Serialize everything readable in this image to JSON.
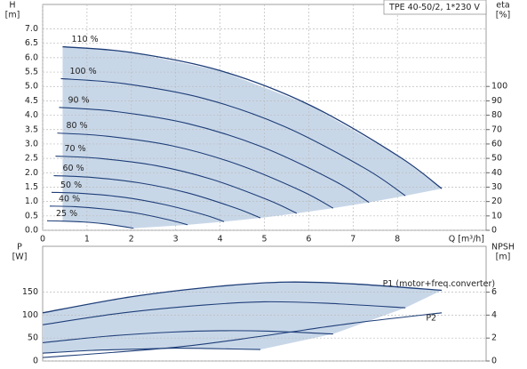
{
  "chart_data": [
    {
      "type": "line",
      "title": "TPE 40-50/2, 1*230 V",
      "ylabel": [
        "H",
        "[m]"
      ],
      "y2label": [
        "eta",
        "[%]"
      ],
      "xlabel": "Q [m³/h]",
      "xlim": [
        0,
        10
      ],
      "xticks": [
        0,
        1,
        2,
        3,
        4,
        5,
        6,
        7,
        8
      ],
      "ylim": [
        0,
        7.85
      ],
      "yticks": [
        {
          "value": 0,
          "label": "0.0"
        },
        {
          "value": 0.5,
          "label": "0.5"
        },
        {
          "value": 1,
          "label": "1.0"
        },
        {
          "value": 1.5,
          "label": "1.5"
        },
        {
          "value": 2,
          "label": "2.0"
        },
        {
          "value": 2.5,
          "label": "2.5"
        },
        {
          "value": 3,
          "label": "3.0"
        },
        {
          "value": 3.5,
          "label": "3.5"
        },
        {
          "value": 4,
          "label": "4.0"
        },
        {
          "value": 4.5,
          "label": "4.5"
        },
        {
          "value": 5,
          "label": "5.0"
        },
        {
          "value": 5.5,
          "label": "5.5"
        },
        {
          "value": 6,
          "label": "6.0"
        },
        {
          "value": 6.5,
          "label": "6.5"
        },
        {
          "value": 7,
          "label": "7.0"
        }
      ],
      "y2lim": [
        0,
        157
      ],
      "y2ticks": [
        0,
        10,
        20,
        30,
        40,
        50,
        60,
        70,
        80,
        90,
        100
      ],
      "grid": true,
      "fill_color": "#c8d7e8",
      "series": [
        {
          "name": "110 %",
          "color": "#1e3e78",
          "x": [
            0.45,
            2,
            4,
            6,
            8,
            9.0
          ],
          "values": [
            6.38,
            6.18,
            5.55,
            4.37,
            2.6,
            1.45
          ]
        },
        {
          "name": "100 %",
          "color": "#1e3e78",
          "x": [
            0.41,
            1.82,
            3.64,
            5.45,
            7.27,
            8.18
          ],
          "values": [
            5.27,
            5.1,
            4.58,
            3.61,
            2.15,
            1.2
          ]
        },
        {
          "name": "90 %",
          "color": "#1e3e78",
          "x": [
            0.37,
            1.64,
            3.27,
            4.91,
            6.55,
            7.36
          ],
          "values": [
            4.27,
            4.13,
            3.71,
            2.92,
            1.74,
            0.97
          ]
        },
        {
          "name": "80 %",
          "color": "#1e3e78",
          "x": [
            0.33,
            1.45,
            2.91,
            4.36,
            5.82,
            6.55
          ],
          "values": [
            3.38,
            3.27,
            2.94,
            2.31,
            1.38,
            0.77
          ]
        },
        {
          "name": "70 %",
          "color": "#1e3e78",
          "x": [
            0.29,
            1.27,
            2.55,
            3.82,
            5.09,
            5.73
          ],
          "values": [
            2.58,
            2.5,
            2.25,
            1.77,
            1.05,
            0.59
          ]
        },
        {
          "name": "60 %",
          "color": "#1e3e78",
          "x": [
            0.25,
            1.09,
            2.18,
            3.27,
            4.36,
            4.91
          ],
          "values": [
            1.9,
            1.84,
            1.65,
            1.3,
            0.77,
            0.43
          ]
        },
        {
          "name": "50 %",
          "color": "#1e3e78",
          "x": [
            0.2,
            0.91,
            1.82,
            2.73,
            3.64,
            4.09
          ],
          "values": [
            1.32,
            1.28,
            1.15,
            0.9,
            0.54,
            0.3
          ]
        },
        {
          "name": "40 %",
          "color": "#1e3e78",
          "x": [
            0.16,
            0.73,
            1.45,
            2.18,
            2.91,
            3.27
          ],
          "values": [
            0.84,
            0.82,
            0.73,
            0.58,
            0.34,
            0.19
          ]
        },
        {
          "name": "25 %",
          "color": "#1e3e78",
          "x": [
            0.1,
            0.45,
            0.91,
            1.36,
            1.82,
            2.05
          ],
          "values": [
            0.33,
            0.32,
            0.29,
            0.23,
            0.13,
            0.07
          ]
        }
      ]
    },
    {
      "type": "line",
      "ylabel": [
        "P",
        "[W]"
      ],
      "y2label": [
        "NPSH",
        "[m]"
      ],
      "xlim": [
        0,
        10
      ],
      "ylim": [
        0,
        250
      ],
      "yticks": [
        0,
        50,
        100,
        150
      ],
      "y2lim": [
        0,
        10
      ],
      "y2ticks": [
        0,
        2,
        4,
        6
      ],
      "grid": true,
      "fill_color": "#c8d7e8",
      "series": [
        {
          "name": "P1 (motor+freq.converter)",
          "color": "#1e3e78",
          "x": [
            0,
            2,
            4,
            5.5,
            7,
            9
          ],
          "values": [
            105,
            140,
            163,
            172,
            168,
            154
          ]
        },
        {
          "color": "#1e3e78",
          "x": [
            0,
            1.82,
            3.64,
            5.0,
            6.36,
            8.18
          ],
          "values": [
            79,
            105,
            122,
            129,
            126,
            116
          ]
        },
        {
          "color": "#1e3e78",
          "x": [
            0,
            1.45,
            2.91,
            4.0,
            5.09,
            6.55
          ],
          "values": [
            40,
            54,
            63,
            66,
            65,
            59
          ]
        },
        {
          "color": "#1e3e78",
          "x": [
            0,
            1.09,
            2.18,
            3.0,
            3.82,
            4.91
          ],
          "values": [
            17,
            23,
            26,
            28,
            27,
            25
          ]
        },
        {
          "name": "P2",
          "color": "#1e3e78",
          "axis": "y2",
          "x": [
            0,
            3,
            5,
            7,
            9
          ],
          "values": [
            0.3,
            1.2,
            2.2,
            3.3,
            4.2
          ]
        }
      ]
    }
  ]
}
